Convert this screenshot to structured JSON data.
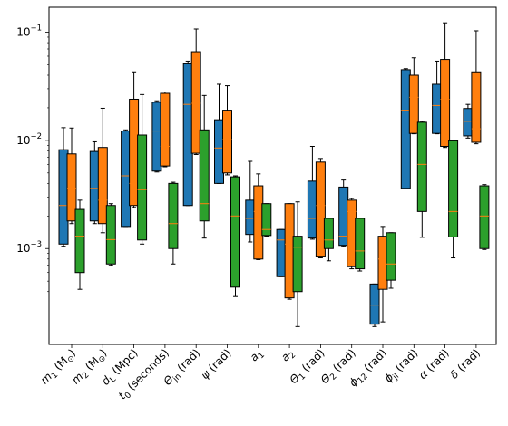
{
  "chart_data": {
    "type": "box",
    "yscale": "log",
    "ylim": [
      0.00013,
      0.17
    ],
    "yticks": [
      {
        "value": 0.001,
        "base": "10",
        "exp": "−3"
      },
      {
        "value": 0.01,
        "base": "10",
        "exp": "−2"
      },
      {
        "value": 0.1,
        "base": "10",
        "exp": "−1"
      }
    ],
    "categories": [
      {
        "main": "m",
        "sub": "1",
        "rest": " (M",
        "sub2": "⊙",
        "end": ")"
      },
      {
        "main": "m",
        "sub": "2",
        "rest": " (M",
        "sub2": "⊙",
        "end": ")"
      },
      {
        "main": "d",
        "sub": "L",
        "rest": " (Mpc)",
        "sub2": "",
        "end": ""
      },
      {
        "main": "t",
        "sub": "0",
        "rest": " (seconds)",
        "sub2": "",
        "end": ""
      },
      {
        "main": "Θ",
        "sub": "jn",
        "rest": " (rad)",
        "sub2": "",
        "end": ""
      },
      {
        "main": "ψ",
        "sub": "",
        "rest": " (rad)",
        "sub2": "",
        "end": ""
      },
      {
        "main": "a",
        "sub": "1",
        "rest": "",
        "sub2": "",
        "end": ""
      },
      {
        "main": "a",
        "sub": "2",
        "rest": "",
        "sub2": "",
        "end": ""
      },
      {
        "main": "Θ",
        "sub": "1",
        "rest": " (rad)",
        "sub2": "",
        "end": ""
      },
      {
        "main": "Θ",
        "sub": "2",
        "rest": " (rad)",
        "sub2": "",
        "end": ""
      },
      {
        "main": "ϕ",
        "sub": "12",
        "rest": " (rad)",
        "sub2": "",
        "end": ""
      },
      {
        "main": "ϕ",
        "sub": "jl",
        "rest": " (rad)",
        "sub2": "",
        "end": ""
      },
      {
        "main": "α",
        "sub": "",
        "rest": " (rad)",
        "sub2": "",
        "end": ""
      },
      {
        "main": "δ",
        "sub": "",
        "rest": " (rad)",
        "sub2": "",
        "end": ""
      }
    ],
    "colors": [
      "#1f77b4",
      "#ff7f0e",
      "#2ca02c"
    ],
    "median_color": "#ff7f0e",
    "series": [
      {
        "boxes": [
          {
            "min": 0.00105,
            "q1": 0.0011,
            "med": 0.0025,
            "q3": 0.0082,
            "max": 0.0131
          },
          {
            "min": 0.0017,
            "q1": 0.0018,
            "med": 0.0036,
            "q3": 0.0079,
            "max": 0.0097
          },
          {
            "min": 0.0016,
            "q1": 0.0016,
            "med": 0.0047,
            "q3": 0.0122,
            "max": 0.0125
          },
          {
            "min": 0.0051,
            "q1": 0.0052,
            "med": 0.0122,
            "q3": 0.0225,
            "max": 0.0232
          },
          {
            "min": 0.0025,
            "q1": 0.0025,
            "med": 0.0215,
            "q3": 0.051,
            "max": 0.054
          },
          {
            "min": 0.004,
            "q1": 0.004,
            "med": 0.0085,
            "q3": 0.0155,
            "max": 0.033
          },
          {
            "min": 0.00115,
            "q1": 0.00135,
            "med": 0.0019,
            "q3": 0.0028,
            "max": 0.0064
          },
          {
            "min": 0.00055,
            "q1": 0.00055,
            "med": 0.0012,
            "q3": 0.0015,
            "max": 0.0015
          },
          {
            "min": 0.00122,
            "q1": 0.00125,
            "med": 0.0019,
            "q3": 0.0042,
            "max": 0.0088
          },
          {
            "min": 0.00105,
            "q1": 0.00107,
            "med": 0.0013,
            "q3": 0.0037,
            "max": 0.0043
          },
          {
            "min": 0.00019,
            "q1": 0.0002,
            "med": 0.0003,
            "q3": 0.00047,
            "max": 0.00047
          },
          {
            "min": 0.0036,
            "q1": 0.0036,
            "med": 0.019,
            "q3": 0.045,
            "max": 0.046
          },
          {
            "min": 0.0115,
            "q1": 0.0116,
            "med": 0.021,
            "q3": 0.033,
            "max": 0.054
          },
          {
            "min": 0.0105,
            "q1": 0.011,
            "med": 0.015,
            "q3": 0.0197,
            "max": 0.0215
          }
        ]
      },
      {
        "boxes": [
          {
            "min": 0.0017,
            "q1": 0.0018,
            "med": 0.0036,
            "q3": 0.0075,
            "max": 0.013
          },
          {
            "min": 0.0014,
            "q1": 0.0017,
            "med": 0.0028,
            "q3": 0.0086,
            "max": 0.0198
          },
          {
            "min": 0.0024,
            "q1": 0.0025,
            "med": 0.004,
            "q3": 0.024,
            "max": 0.043
          },
          {
            "min": 0.0057,
            "q1": 0.0058,
            "med": 0.0088,
            "q3": 0.0272,
            "max": 0.028
          },
          {
            "min": 0.0074,
            "q1": 0.0076,
            "med": 0.022,
            "q3": 0.066,
            "max": 0.107
          },
          {
            "min": 0.0048,
            "q1": 0.005,
            "med": 0.0102,
            "q3": 0.019,
            "max": 0.032
          },
          {
            "min": 0.00079,
            "q1": 0.0008,
            "med": 0.0022,
            "q3": 0.0038,
            "max": 0.0049
          },
          {
            "min": 0.00034,
            "q1": 0.00035,
            "med": 0.0011,
            "q3": 0.0026,
            "max": 0.0026
          },
          {
            "min": 0.00082,
            "q1": 0.00085,
            "med": 0.0025,
            "q3": 0.0063,
            "max": 0.0068
          },
          {
            "min": 0.00065,
            "q1": 0.00068,
            "med": 0.0022,
            "q3": 0.0028,
            "max": 0.0029
          },
          {
            "min": 0.00021,
            "q1": 0.00042,
            "med": 0.0008,
            "q3": 0.0013,
            "max": 0.0016
          },
          {
            "min": 0.0115,
            "q1": 0.0116,
            "med": 0.025,
            "q3": 0.04,
            "max": 0.058
          },
          {
            "min": 0.0086,
            "q1": 0.0088,
            "med": 0.024,
            "q3": 0.056,
            "max": 0.122
          },
          {
            "min": 0.0093,
            "q1": 0.0096,
            "med": 0.0128,
            "q3": 0.043,
            "max": 0.103
          }
        ]
      },
      {
        "boxes": [
          {
            "min": 0.00042,
            "q1": 0.0006,
            "med": 0.0013,
            "q3": 0.0023,
            "max": 0.0028
          },
          {
            "min": 0.0007,
            "q1": 0.00072,
            "med": 0.00121,
            "q3": 0.0025,
            "max": 0.0026
          },
          {
            "min": 0.0011,
            "q1": 0.0012,
            "med": 0.0035,
            "q3": 0.0112,
            "max": 0.0265
          },
          {
            "min": 0.00072,
            "q1": 0.001,
            "med": 0.0017,
            "q3": 0.004,
            "max": 0.0041
          },
          {
            "min": 0.00125,
            "q1": 0.0018,
            "med": 0.0026,
            "q3": 0.0125,
            "max": 0.026
          },
          {
            "min": 0.00036,
            "q1": 0.00044,
            "med": 0.002,
            "q3": 0.0046,
            "max": 0.0047
          },
          {
            "min": 0.0013,
            "q1": 0.00132,
            "med": 0.0015,
            "q3": 0.0026,
            "max": 0.0026
          },
          {
            "min": 0.00019,
            "q1": 0.0004,
            "med": 0.00103,
            "q3": 0.0013,
            "max": 0.0027
          },
          {
            "min": 0.00077,
            "q1": 0.001,
            "med": 0.0012,
            "q3": 0.0019,
            "max": 0.0019
          },
          {
            "min": 0.00062,
            "q1": 0.00065,
            "med": 0.00095,
            "q3": 0.0019,
            "max": 0.0019
          },
          {
            "min": 0.00043,
            "q1": 0.00051,
            "med": 0.00072,
            "q3": 0.0014,
            "max": 0.0014
          },
          {
            "min": 0.00127,
            "q1": 0.0022,
            "med": 0.006,
            "q3": 0.0147,
            "max": 0.015
          },
          {
            "min": 0.00082,
            "q1": 0.00128,
            "med": 0.0022,
            "q3": 0.0099,
            "max": 0.01
          },
          {
            "min": 0.00098,
            "q1": 0.001,
            "med": 0.002,
            "q3": 0.0038,
            "max": 0.0039
          }
        ]
      }
    ]
  }
}
